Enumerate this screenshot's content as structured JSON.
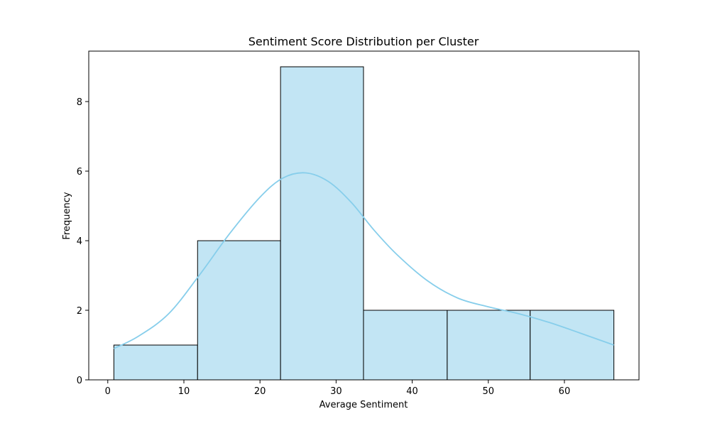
{
  "chart_data": {
    "type": "bar",
    "title": "Sentiment Score Distribution per Cluster",
    "xlabel": "Average Sentiment",
    "ylabel": "Frequency",
    "xlim": [
      -2.5,
      69.8
    ],
    "ylim": [
      0,
      9.45
    ],
    "xticks": [
      0,
      10,
      20,
      30,
      40,
      50,
      60
    ],
    "yticks": [
      0,
      2,
      4,
      6,
      8
    ],
    "bins": [
      {
        "start": 0.8,
        "end": 11.8,
        "count": 1
      },
      {
        "start": 11.8,
        "end": 22.7,
        "count": 4
      },
      {
        "start": 22.7,
        "end": 33.6,
        "count": 9
      },
      {
        "start": 33.6,
        "end": 44.6,
        "count": 2
      },
      {
        "start": 44.6,
        "end": 55.5,
        "count": 2
      },
      {
        "start": 55.5,
        "end": 66.5,
        "count": 2
      }
    ],
    "kde": {
      "x": [
        0.8,
        4,
        8,
        12,
        16,
        20,
        23,
        26,
        29,
        32,
        35,
        38,
        42,
        46,
        50,
        54,
        58,
        62,
        66.5
      ],
      "y": [
        0.9,
        1.25,
        1.9,
        3.0,
        4.2,
        5.25,
        5.8,
        5.95,
        5.7,
        5.1,
        4.3,
        3.6,
        2.85,
        2.35,
        2.1,
        1.9,
        1.65,
        1.35,
        1.0
      ]
    },
    "grid": false,
    "colors": {
      "bar_fill": "#c2e5f4",
      "bar_edge": "#000000",
      "kde_line": "#87ceeb"
    }
  }
}
